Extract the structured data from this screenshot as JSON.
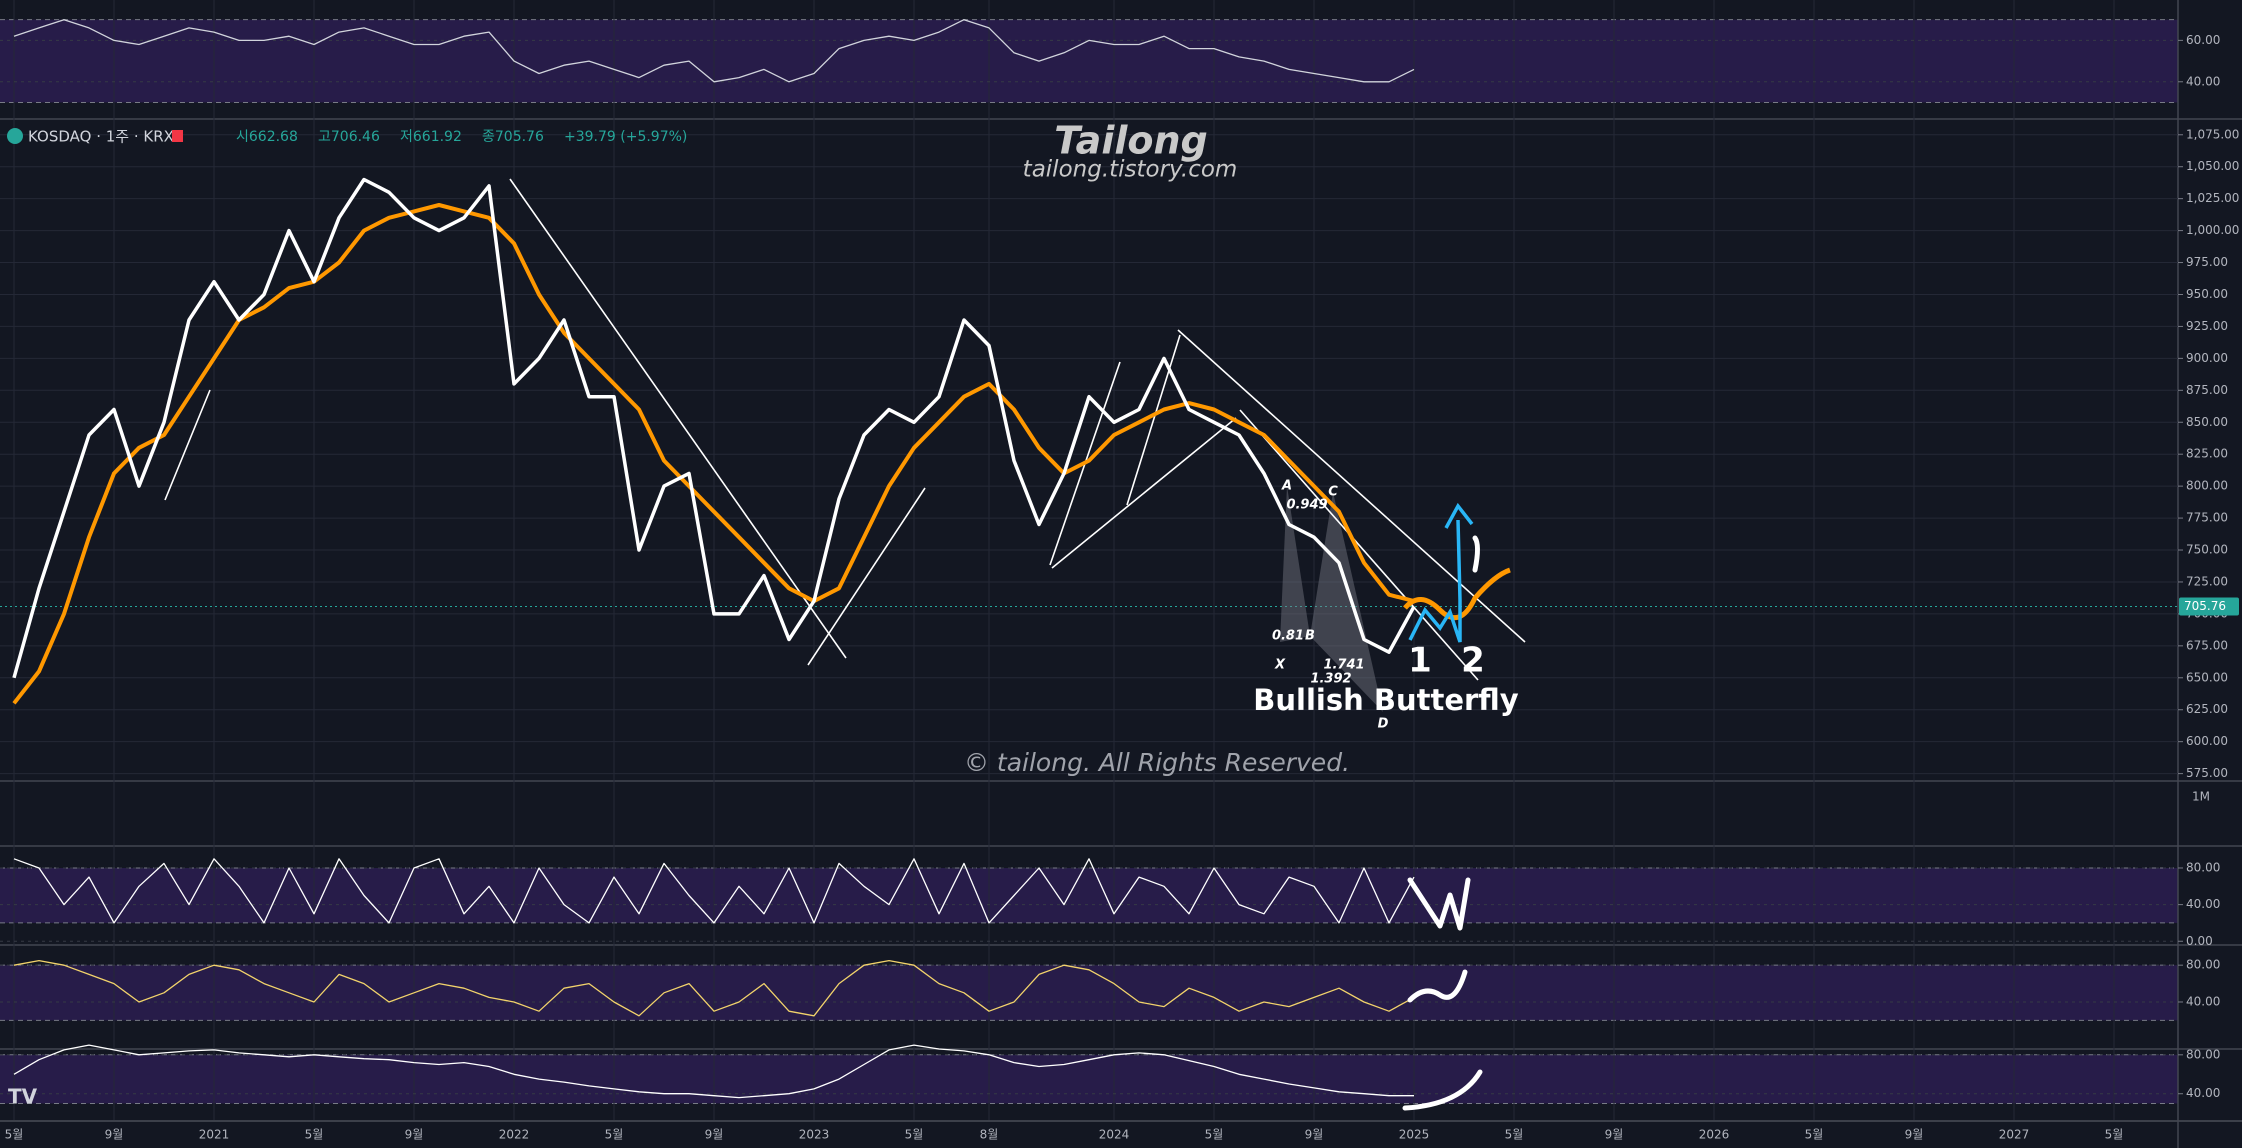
{
  "chart_data": [
    {
      "type": "line",
      "ylim": [
        22.5,
        79.5
      ],
      "yticks": [
        {
          "value": 40,
          "label": "40.00"
        },
        {
          "value": 60,
          "label": "60.00"
        }
      ],
      "band": [
        30,
        70
      ],
      "series": [
        {
          "color": "#d1d4dc",
          "values": [
            62,
            66,
            70,
            66,
            60,
            58,
            62,
            66,
            64,
            60,
            60,
            62,
            58,
            64,
            66,
            62,
            58,
            58,
            62,
            64,
            50,
            44,
            48,
            50,
            46,
            42,
            48,
            50,
            40,
            42,
            46,
            40,
            44,
            56,
            60,
            62,
            60,
            64,
            70,
            66,
            54,
            50,
            54,
            60,
            58,
            58,
            62,
            56,
            56,
            52,
            50,
            46,
            44,
            42,
            40,
            40,
            46,
            null,
            null,
            null,
            null,
            null,
            null,
            null,
            null,
            null,
            null,
            null,
            null,
            null,
            null,
            null,
            null,
            null,
            null,
            null,
            null,
            null,
            null,
            null,
            null,
            null,
            null,
            null,
            null,
            null
          ]
        }
      ]
    },
    {
      "type": "line",
      "title": "Tailong",
      "subtitle": "tailong.tistory.com",
      "header": {
        "symbol": "KOSDAQ · 1주 · KRX",
        "open": "시662.68",
        "high": "고706.46",
        "low": "저661.92",
        "close": "종705.76",
        "change": "+39.79 (+5.97%)"
      },
      "watermark": "© tailong. All Rights Reserved.",
      "pattern": "Bullish Butterfly",
      "pattern_labels": [
        "X",
        "A",
        "B",
        "C",
        "D",
        "0.949",
        "0.81",
        "1.741",
        "1.392"
      ],
      "wave_labels": [
        "1",
        "2"
      ],
      "volume_label": "1M",
      "last_price": {
        "value": 705.76,
        "label": "705.76"
      },
      "categories": [
        "5월",
        null,
        null,
        null,
        "9월",
        null,
        null,
        null,
        "2021",
        null,
        null,
        null,
        "5월",
        null,
        null,
        null,
        "9월",
        null,
        null,
        null,
        "2022",
        null,
        null,
        null,
        "5월",
        null,
        null,
        null,
        "9월",
        null,
        null,
        null,
        "2023",
        null,
        null,
        null,
        "5월",
        null,
        null,
        "8월",
        null,
        null,
        null,
        null,
        "2024",
        null,
        null,
        null,
        "5월",
        null,
        null,
        null,
        "9월",
        null,
        null,
        null,
        "2025",
        null,
        null,
        null,
        "5월",
        null,
        null,
        null,
        "9월",
        null,
        null,
        null,
        "2026",
        null,
        null,
        null,
        "5월",
        null,
        null,
        null,
        "9월",
        null,
        null,
        null,
        "2027",
        null,
        null,
        null,
        "5월",
        null
      ],
      "ylim": [
        570,
        1085
      ],
      "yticks": [
        {
          "value": 575,
          "label": "575.00"
        },
        {
          "value": 600,
          "label": "600.00"
        },
        {
          "value": 625,
          "label": "625.00"
        },
        {
          "value": 650,
          "label": "650.00"
        },
        {
          "value": 675,
          "label": "675.00"
        },
        {
          "value": 700,
          "label": "700.00"
        },
        {
          "value": 725,
          "label": "725.00"
        },
        {
          "value": 750,
          "label": "750.00"
        },
        {
          "value": 775,
          "label": "775.00"
        },
        {
          "value": 800,
          "label": "800.00"
        },
        {
          "value": 825,
          "label": "825.00"
        },
        {
          "value": 850,
          "label": "850.00"
        },
        {
          "value": 875,
          "label": "875.00"
        },
        {
          "value": 900,
          "label": "900.00"
        },
        {
          "value": 925,
          "label": "925.00"
        },
        {
          "value": 950,
          "label": "950.00"
        },
        {
          "value": 975,
          "label": "975.00"
        },
        {
          "value": 1000,
          "label": "1,000.00"
        },
        {
          "value": 1025,
          "label": "1,025.00"
        },
        {
          "value": 1050,
          "label": "1,050.00"
        },
        {
          "value": 1075,
          "label": "1,075.00"
        }
      ],
      "series": [
        {
          "color": "#ff9800",
          "values": [
            630,
            655,
            700,
            760,
            810,
            830,
            840,
            870,
            900,
            930,
            940,
            955,
            960,
            975,
            1000,
            1010,
            1015,
            1020,
            1015,
            1010,
            990,
            950,
            920,
            900,
            880,
            860,
            820,
            800,
            780,
            760,
            740,
            720,
            710,
            720,
            760,
            800,
            830,
            850,
            870,
            880,
            860,
            830,
            810,
            820,
            840,
            850,
            860,
            865,
            860,
            850,
            840,
            820,
            800,
            780,
            740,
            715,
            710,
            null,
            null,
            null,
            null,
            null,
            null,
            null,
            null,
            null,
            null,
            null,
            null,
            null,
            null,
            null,
            null,
            null,
            null,
            null,
            null,
            null,
            null,
            null,
            null,
            null,
            null,
            null,
            null,
            null
          ]
        },
        {
          "color": "#ffffff",
          "values": [
            650,
            720,
            780,
            840,
            860,
            800,
            850,
            930,
            960,
            930,
            950,
            1000,
            960,
            1010,
            1040,
            1030,
            1010,
            1000,
            1010,
            1035,
            880,
            900,
            930,
            870,
            870,
            750,
            800,
            810,
            700,
            700,
            730,
            680,
            710,
            790,
            840,
            860,
            850,
            870,
            930,
            910,
            820,
            770,
            810,
            870,
            850,
            860,
            900,
            860,
            850,
            840,
            810,
            770,
            760,
            740,
            680,
            670,
            705.76,
            null,
            null,
            null,
            null,
            null,
            null,
            null,
            null,
            null,
            null,
            null,
            null,
            null,
            null,
            null,
            null,
            null,
            null,
            null,
            null,
            null,
            null,
            null,
            null,
            null,
            null,
            null,
            null,
            null
          ]
        }
      ]
    },
    {
      "type": "line",
      "ylim": [
        -3,
        104
      ],
      "yticks": [
        {
          "value": 0,
          "label": "0.00"
        },
        {
          "value": 40,
          "label": "40.00"
        },
        {
          "value": 80,
          "label": "80.00"
        }
      ],
      "band": [
        20,
        80
      ],
      "series": [
        {
          "color": "#ffffff",
          "values": [
            90,
            80,
            40,
            70,
            20,
            60,
            85,
            40,
            90,
            60,
            20,
            80,
            30,
            90,
            50,
            20,
            80,
            90,
            30,
            60,
            20,
            80,
            40,
            20,
            70,
            30,
            85,
            50,
            20,
            60,
            30,
            80,
            20,
            85,
            60,
            40,
            90,
            30,
            85,
            20,
            50,
            80,
            40,
            90,
            30,
            70,
            60,
            30,
            80,
            40,
            30,
            70,
            60,
            20,
            80,
            20,
            70,
            null,
            null,
            null,
            null,
            null,
            null,
            null,
            null,
            null,
            null,
            null,
            null,
            null,
            null,
            null,
            null,
            null,
            null,
            null,
            null,
            null,
            null,
            null,
            null,
            null,
            null,
            null,
            null,
            null
          ]
        }
      ]
    },
    {
      "type": "line",
      "ylim": [
        -10,
        103
      ],
      "yticks": [
        {
          "value": 40,
          "label": "40.00"
        },
        {
          "value": 80,
          "label": "80.00"
        }
      ],
      "band": [
        20,
        80
      ],
      "series": [
        {
          "color": "#f2d36b",
          "values": [
            80,
            85,
            80,
            70,
            60,
            40,
            50,
            70,
            80,
            75,
            60,
            50,
            40,
            70,
            60,
            40,
            50,
            60,
            55,
            45,
            40,
            30,
            55,
            60,
            40,
            25,
            50,
            60,
            30,
            40,
            60,
            30,
            25,
            60,
            80,
            85,
            80,
            60,
            50,
            30,
            40,
            70,
            80,
            75,
            60,
            40,
            35,
            55,
            45,
            30,
            40,
            35,
            45,
            55,
            40,
            30,
            45,
            null,
            null,
            null,
            null,
            null,
            null,
            null,
            null,
            null,
            null,
            null,
            null,
            null,
            null,
            null,
            null,
            null,
            null,
            null,
            null,
            null,
            null,
            null,
            null,
            null,
            null,
            null,
            null,
            null
          ]
        }
      ]
    },
    {
      "type": "line",
      "ylim": [
        13,
        87
      ],
      "yticks": [
        {
          "value": 40,
          "label": "40.00"
        },
        {
          "value": 80,
          "label": "80.00"
        }
      ],
      "band": [
        30,
        80
      ],
      "series": [
        {
          "color": "#ffffff",
          "values": [
            60,
            75,
            85,
            90,
            85,
            80,
            82,
            84,
            85,
            82,
            80,
            78,
            80,
            78,
            76,
            75,
            72,
            70,
            72,
            68,
            60,
            55,
            52,
            48,
            45,
            42,
            40,
            40,
            38,
            36,
            38,
            40,
            45,
            55,
            70,
            85,
            90,
            86,
            84,
            80,
            72,
            68,
            70,
            75,
            80,
            82,
            80,
            74,
            68,
            60,
            55,
            50,
            46,
            42,
            40,
            38,
            38,
            null,
            null,
            null,
            null,
            null,
            null,
            null,
            null,
            null,
            null,
            null,
            null,
            null,
            null,
            null,
            null,
            null,
            null,
            null,
            null,
            null,
            null,
            null,
            null,
            null,
            null,
            null,
            null,
            null
          ]
        }
      ]
    }
  ]
}
